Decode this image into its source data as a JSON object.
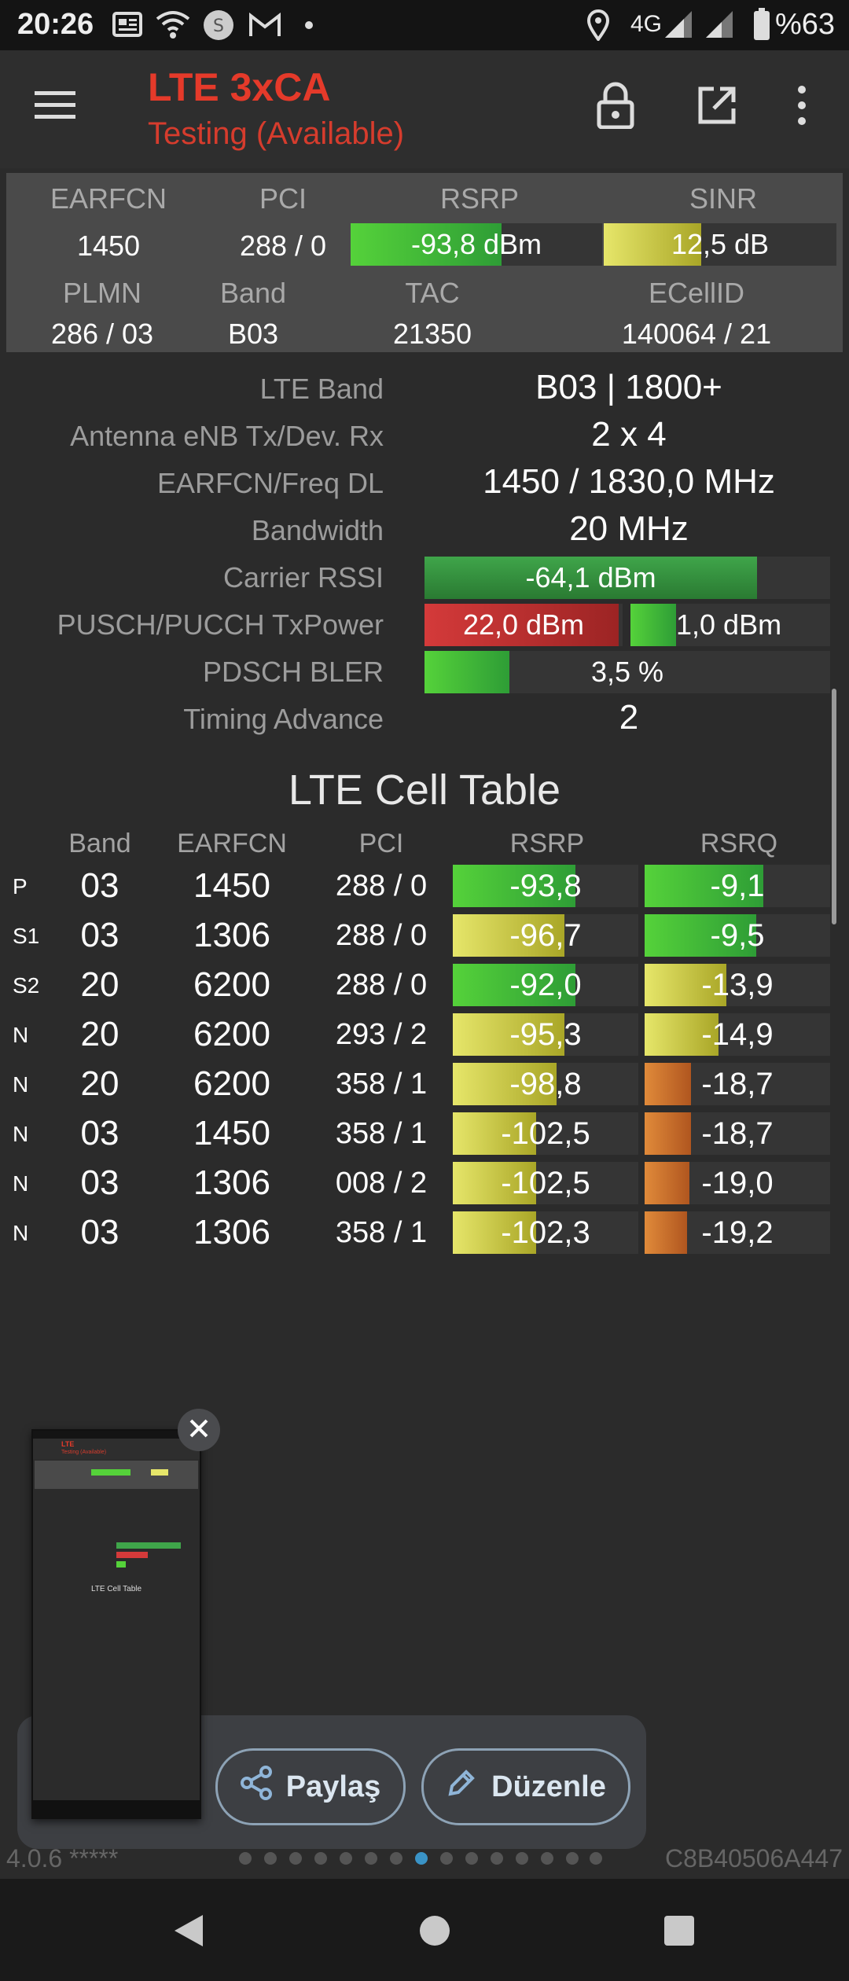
{
  "status": {
    "time": "20:26",
    "network": "4G",
    "battery": "%63"
  },
  "app": {
    "title": "LTE 3xCA",
    "subtitle": "Testing (Available)"
  },
  "summary": {
    "labels": {
      "earfcn": "EARFCN",
      "pci": "PCI",
      "rsrp": "RSRP",
      "sinr": "SINR",
      "plmn": "PLMN",
      "band": "Band",
      "tac": "TAC",
      "ecellid": "ECellID"
    },
    "earfcn": "1450",
    "pci": "288 / 0",
    "rsrp": {
      "text": "-93,8 dBm",
      "level": 0.6
    },
    "sinr": {
      "text": "12,5 dB",
      "level": 0.42
    },
    "plmn": "286 / 03",
    "band": "B03",
    "tac": "21350",
    "ecellid": "140064 / 21"
  },
  "details": {
    "lte_band": {
      "label": "LTE Band",
      "value": "B03 | 1800+"
    },
    "antenna": {
      "label": "Antenna eNB Tx/Dev. Rx",
      "value": "2 x 4"
    },
    "earfcn_freq": {
      "label": "EARFCN/Freq DL",
      "value": "1450 / 1830,0 MHz"
    },
    "bandwidth": {
      "label": "Bandwidth",
      "value": "20 MHz"
    },
    "rssi": {
      "label": "Carrier RSSI",
      "value": "-64,1 dBm",
      "level": 0.82
    },
    "txpower": {
      "label": "PUSCH/PUCCH TxPower",
      "pusch": "22,0 dBm",
      "pusch_level": 0.98,
      "pucch": "1,0 dBm",
      "pucch_level": 0.23
    },
    "bler": {
      "label": "PDSCH BLER",
      "value": "3,5 %",
      "level": 0.21
    },
    "ta": {
      "label": "Timing Advance",
      "value": "2"
    }
  },
  "cell_table": {
    "title": "LTE Cell Table",
    "headers": {
      "band": "Band",
      "earfcn": "EARFCN",
      "pci": "PCI",
      "rsrp": "RSRP",
      "rsrq": "RSRQ"
    },
    "rows": [
      {
        "tag": "P",
        "band": "03",
        "earfcn": "1450",
        "pci": "288 / 0",
        "rsrp": "-93,8",
        "rsrp_level": 0.66,
        "rsrp_color": "green",
        "rsrq": "-9,1",
        "rsrq_level": 0.64,
        "rsrq_color": "green"
      },
      {
        "tag": "S1",
        "band": "03",
        "earfcn": "1306",
        "pci": "288 / 0",
        "rsrp": "-96,7",
        "rsrp_level": 0.6,
        "rsrp_color": "yellow",
        "rsrq": "-9,5",
        "rsrq_level": 0.6,
        "rsrq_color": "green"
      },
      {
        "tag": "S2",
        "band": "20",
        "earfcn": "6200",
        "pci": "288 / 0",
        "rsrp": "-92,0",
        "rsrp_level": 0.66,
        "rsrp_color": "green",
        "rsrq": "-13,9",
        "rsrq_level": 0.44,
        "rsrq_color": "yellow"
      },
      {
        "tag": "N",
        "band": "20",
        "earfcn": "6200",
        "pci": "293 / 2",
        "rsrp": "-95,3",
        "rsrp_level": 0.6,
        "rsrp_color": "yellow",
        "rsrq": "-14,9",
        "rsrq_level": 0.4,
        "rsrq_color": "yellow"
      },
      {
        "tag": "N",
        "band": "20",
        "earfcn": "6200",
        "pci": "358 / 1",
        "rsrp": "-98,8",
        "rsrp_level": 0.56,
        "rsrp_color": "yellow",
        "rsrq": "-18,7",
        "rsrq_level": 0.25,
        "rsrq_color": "orange"
      },
      {
        "tag": "N",
        "band": "03",
        "earfcn": "1450",
        "pci": "358 / 1",
        "rsrp": "-102,5",
        "rsrp_level": 0.45,
        "rsrp_color": "yellow",
        "rsrq": "-18,7",
        "rsrq_level": 0.25,
        "rsrq_color": "orange"
      },
      {
        "tag": "N",
        "band": "03",
        "earfcn": "1306",
        "pci": "008 / 2",
        "rsrp": "-102,5",
        "rsrp_level": 0.45,
        "rsrp_color": "yellow",
        "rsrq": "-19,0",
        "rsrq_level": 0.24,
        "rsrq_color": "orange"
      },
      {
        "tag": "N",
        "band": "03",
        "earfcn": "1306",
        "pci": "358 / 1",
        "rsrp": "-102,3",
        "rsrp_level": 0.45,
        "rsrp_color": "yellow",
        "rsrq": "-19,2",
        "rsrq_level": 0.23,
        "rsrq_color": "orange"
      }
    ]
  },
  "footer": {
    "version": "4.0.6 *****",
    "device_id": "C8B40506A447"
  },
  "screenshot_toast": {
    "share_label": "Paylaş",
    "edit_label": "Düzenle",
    "thumb": {
      "title": "LTE",
      "subtitle": "Testing (Available)",
      "table_title": "LTE Cell Table"
    }
  },
  "colors": {
    "accent": "#e53a2a",
    "green": "#55d23a",
    "yellow": "#e6e66a",
    "orange": "#e08a3a",
    "red": "#d43a3a"
  }
}
